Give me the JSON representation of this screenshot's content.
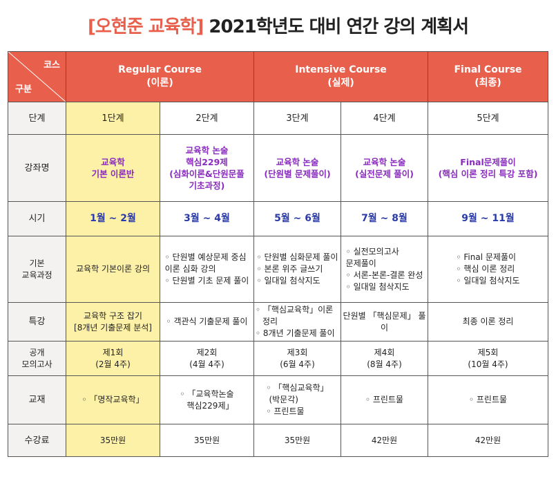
{
  "title": {
    "accent": "[오현준 교육학]",
    "rest": "2021학년도 대비 연간 강의 계획서"
  },
  "header": {
    "corner_course": "코스",
    "corner_gubun": "구분",
    "regular": {
      "name": "Regular Course",
      "sub": "(이론)"
    },
    "intensive": {
      "name": "Intensive Course",
      "sub": "(실제)"
    },
    "final": {
      "name": "Final Course",
      "sub": "(최종)"
    }
  },
  "rows": {
    "stage": {
      "label": "단계",
      "values": [
        "1단계",
        "2단계",
        "3단계",
        "4단계",
        "5단계"
      ]
    },
    "course": {
      "label": "강좌명",
      "values": [
        [
          "교육학",
          "기본 이론반"
        ],
        [
          "교육학 논술",
          "핵심229제",
          "(심화이론&단원문풀",
          "기초과정)"
        ],
        [
          "교육학 논술",
          "(단원별 문제풀이)"
        ],
        [
          "교육학 논술",
          "(실전문제 풀이)"
        ],
        [
          "Final문제풀이",
          "(핵심 이론 정리 특강 포함)"
        ]
      ]
    },
    "period": {
      "label": "시기",
      "values": [
        "1월 ~ 2월",
        "3월 ~ 4월",
        "5월 ~ 6월",
        "7월 ~ 8월",
        "9월 ~ 11월"
      ]
    },
    "basic": {
      "label_1": "기본",
      "label_2": "교육과정",
      "c1": "교육학 기본이론 강의",
      "c2": [
        "단원별 예상문제 중심",
        "이론 심화 강의",
        "단원별 기초 문제 풀이"
      ],
      "c3": [
        "단원별 심화문제 풀이",
        "본론 위주 글쓰기",
        "일대일 첨삭지도"
      ],
      "c4": [
        "실전모의고사",
        "문제풀이",
        "서론-본론-결론 완성",
        "일대일 첨삭지도"
      ],
      "c5": [
        "Final 문제풀이",
        "핵심 이론 정리",
        "일대일 첨삭지도"
      ]
    },
    "special": {
      "label": "특강",
      "c1": [
        "교육학 구조 잡기",
        "[8개년 기출문제 분석]"
      ],
      "c2": "객관식 기출문제 풀이",
      "c3": [
        "「핵심교육학」이론정리",
        "8개년 기출문제 풀이"
      ],
      "c4": "단원별 「핵심문제」 풀이",
      "c5": "최종 이론 정리"
    },
    "mock": {
      "label_1": "공개",
      "label_2": "모의고사",
      "values": [
        [
          "제1회",
          "(2월 4주)"
        ],
        [
          "제2회",
          "(4월 4주)"
        ],
        [
          "제3회",
          "(6월 4주)"
        ],
        [
          "제4회",
          "(8월 4주)"
        ],
        [
          "제5회",
          "(10월 4주)"
        ]
      ]
    },
    "textbook": {
      "label": "교재",
      "c1": "「명작교육학」",
      "c2": [
        "「교육학논술",
        "핵심229제」"
      ],
      "c3": [
        "「핵심교육학」",
        "(박문각)",
        "프린트물"
      ],
      "c4": "프린트물",
      "c5": "프린트물"
    },
    "fee": {
      "label": "수강료",
      "values": [
        "35만원",
        "35만원",
        "35만원",
        "42만원",
        "42만원"
      ]
    }
  }
}
